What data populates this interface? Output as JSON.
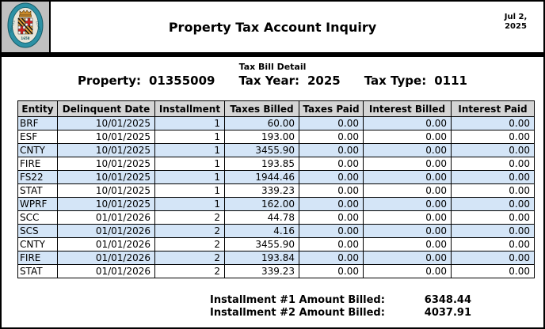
{
  "header": {
    "title": "Property Tax Account Inquiry",
    "date_line1": "Jul 2,",
    "date_line2": "2025",
    "seal": "charles-county-maryland-seal"
  },
  "detail": {
    "section_title": "Tax Bill Detail",
    "property_label": "Property:",
    "property_value": "01355009",
    "tax_year_label": "Tax Year:",
    "tax_year_value": "2025",
    "tax_type_label": "Tax Type:",
    "tax_type_value": "0111"
  },
  "table": {
    "columns": [
      "Entity",
      "Delinquent Date",
      "Installment",
      "Taxes Billed",
      "Taxes Paid",
      "Interest Billed",
      "Interest Paid"
    ],
    "rows": [
      [
        "BRF",
        "10/01/2025",
        "1",
        "60.00",
        "0.00",
        "0.00",
        "0.00"
      ],
      [
        "ESF",
        "10/01/2025",
        "1",
        "193.00",
        "0.00",
        "0.00",
        "0.00"
      ],
      [
        "CNTY",
        "10/01/2025",
        "1",
        "3455.90",
        "0.00",
        "0.00",
        "0.00"
      ],
      [
        "FIRE",
        "10/01/2025",
        "1",
        "193.85",
        "0.00",
        "0.00",
        "0.00"
      ],
      [
        "FS22",
        "10/01/2025",
        "1",
        "1944.46",
        "0.00",
        "0.00",
        "0.00"
      ],
      [
        "STAT",
        "10/01/2025",
        "1",
        "339.23",
        "0.00",
        "0.00",
        "0.00"
      ],
      [
        "WPRF",
        "10/01/2025",
        "1",
        "162.00",
        "0.00",
        "0.00",
        "0.00"
      ],
      [
        "SCC",
        "01/01/2026",
        "2",
        "44.78",
        "0.00",
        "0.00",
        "0.00"
      ],
      [
        "SCS",
        "01/01/2026",
        "2",
        "4.16",
        "0.00",
        "0.00",
        "0.00"
      ],
      [
        "CNTY",
        "01/01/2026",
        "2",
        "3455.90",
        "0.00",
        "0.00",
        "0.00"
      ],
      [
        "FIRE",
        "01/01/2026",
        "2",
        "193.84",
        "0.00",
        "0.00",
        "0.00"
      ],
      [
        "STAT",
        "01/01/2026",
        "2",
        "339.23",
        "0.00",
        "0.00",
        "0.00"
      ]
    ]
  },
  "summary": {
    "rows": [
      {
        "label": "Installment #1 Amount Billed:",
        "value": "6348.44"
      },
      {
        "label": "Installment #2 Amount Billed:",
        "value": "4037.91"
      }
    ]
  },
  "colors": {
    "row_alt": "#d4e5f7",
    "table_header_bg": "#d4d4d4",
    "seal_bg": "#c0c0c0",
    "border": "#000000"
  }
}
